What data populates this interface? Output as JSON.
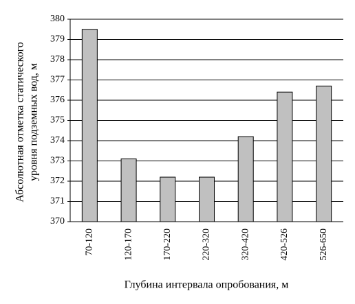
{
  "chart_data": {
    "type": "bar",
    "ylabel": [
      "Абсолютная отметка статического",
      "уровня подземных вод, м"
    ],
    "xlabel": "Глубина интервала опробования, м",
    "categories": [
      "70-120",
      "120-170",
      "170-220",
      "220-320",
      "320-420",
      "420-526",
      "526-650"
    ],
    "values": [
      379.5,
      373.1,
      372.2,
      372.2,
      374.2,
      376.4,
      376.7
    ],
    "color": "#c0c0c0",
    "ylim": [
      370,
      380
    ],
    "yticks": [
      370,
      371,
      372,
      373,
      374,
      375,
      376,
      377,
      378,
      379,
      380
    ],
    "grid": true
  }
}
